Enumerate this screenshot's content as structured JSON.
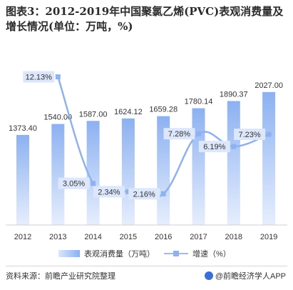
{
  "title": "图表3：2012-2019年中国聚氯乙烯(PVC)表观消费量及增长情况(单位：万吨，%)",
  "chart_data": {
    "type": "bar",
    "categories": [
      "2012",
      "2013",
      "2014",
      "2015",
      "2016",
      "2017",
      "2018",
      "2019"
    ],
    "series": [
      {
        "name": "表观消费量（万吨）",
        "type": "bar",
        "values": [
          1373.4,
          1540.0,
          1587.0,
          1624.12,
          1659.28,
          1780.14,
          1890.37,
          2027.0
        ],
        "labels": [
          "1373.40",
          "1540.00",
          "1587.00",
          "1624.12",
          "1659.28",
          "1780.14",
          "1890.37",
          "2027.00"
        ]
      },
      {
        "name": "增速（%）",
        "type": "line",
        "values": [
          null,
          12.13,
          3.05,
          2.34,
          2.16,
          7.28,
          6.19,
          7.23
        ],
        "labels": [
          "",
          "12.13%",
          "3.05%",
          "2.34%",
          "2.16%",
          "7.28%",
          "6.19%",
          "7.23%"
        ]
      }
    ],
    "bar_ylim": [
      0,
      2450
    ],
    "line_ylim": [
      -0.5,
      13.2
    ],
    "grid": false,
    "legend_position": "bottom",
    "colors": {
      "bar_light": "#e4ecfc",
      "bar_dark": "#8fb3f1",
      "line": "#8fb1ee",
      "label_box": "#dce7fb"
    }
  },
  "legend": {
    "bar_label": "表观消费量（万吨）",
    "line_label": "增速（%）"
  },
  "footer": {
    "source": "资料来源：前瞻产业研究院整理",
    "credit": "@前瞻经济学人APP"
  }
}
